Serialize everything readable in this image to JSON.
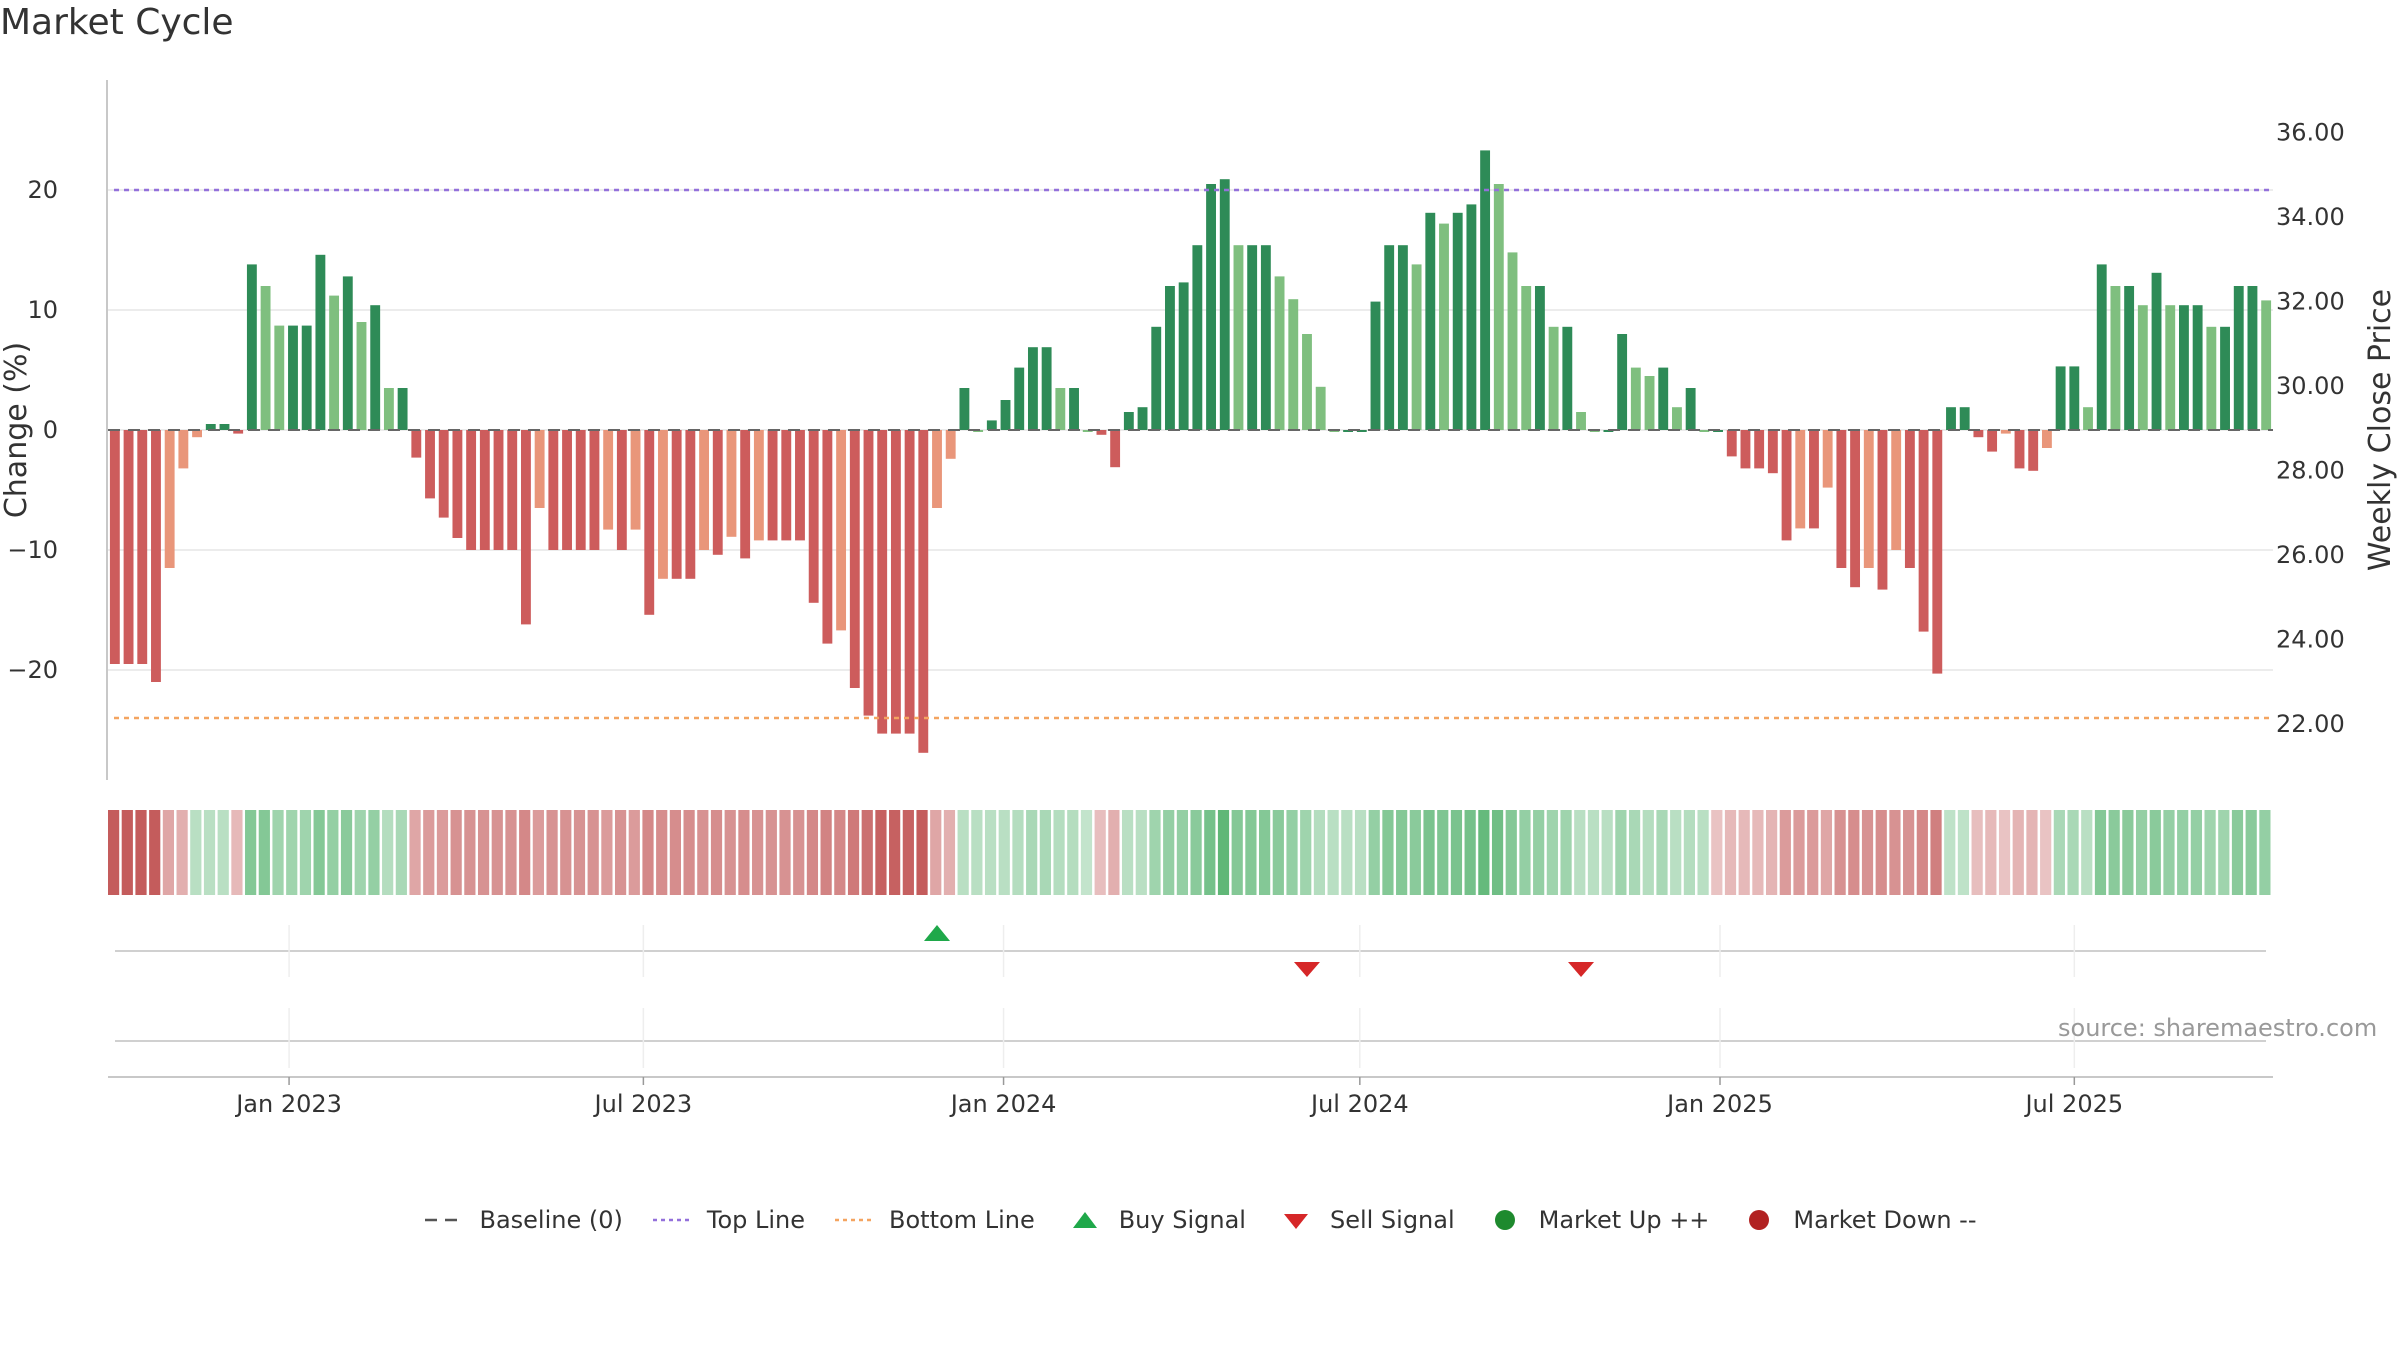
{
  "title": "Market Cycle",
  "source": "source: sharemaestro.com",
  "chart_data": {
    "type": "bar",
    "title": "Market Cycle",
    "ylabel": "Change (%)",
    "y2label": "Weekly Close Price",
    "ylim": [
      -29,
      29
    ],
    "y2lim": [
      20.7,
      37.35
    ],
    "yticks": [
      -20,
      -10,
      0,
      10,
      20
    ],
    "y2ticks": [
      "22.00",
      "24.00",
      "26.00",
      "28.00",
      "30.00",
      "32.00",
      "34.00",
      "36.00"
    ],
    "xticks": [
      "Jan 2023",
      "Jul 2023",
      "Jan 2024",
      "Jul 2024",
      "Jan 2025",
      "Jul 2025"
    ],
    "top_line": 20,
    "bottom_line": -24,
    "baseline": 0,
    "grid": true,
    "legend_position": "bottom",
    "weeks_start": "2022-10-04",
    "values": [
      -19.5,
      -19.5,
      -19.5,
      -21,
      -11.5,
      -3.2,
      -0.6,
      0.5,
      0.5,
      -0.3,
      13.8,
      12,
      8.7,
      8.7,
      8.7,
      14.6,
      11.2,
      12.8,
      9,
      10.4,
      3.5,
      3.5,
      -2.3,
      -5.7,
      -7.3,
      -9,
      -10,
      -10,
      -10,
      -10,
      -16.2,
      -6.5,
      -10,
      -10,
      -10,
      -10,
      -8.3,
      -10,
      -8.3,
      -15.4,
      -12.4,
      -12.4,
      -12.4,
      -10,
      -10.4,
      -8.9,
      -10.7,
      -9.2,
      -9.2,
      -9.2,
      -9.2,
      -14.4,
      -17.8,
      -16.7,
      -21.5,
      -23.8,
      -25.3,
      -25.3,
      -25.3,
      -26.9,
      -6.5,
      -2.4,
      3.5,
      0,
      0.8,
      2.5,
      5.2,
      6.9,
      6.9,
      3.5,
      3.5,
      0,
      -0.4,
      -3.1,
      1.5,
      1.9,
      8.6,
      12,
      12.3,
      15.4,
      20.5,
      20.9,
      15.4,
      15.4,
      15.4,
      12.8,
      10.9,
      8,
      3.6,
      0,
      0,
      0,
      10.7,
      15.4,
      15.4,
      13.8,
      18.1,
      17.2,
      18.1,
      18.8,
      23.3,
      20.5,
      14.8,
      12,
      12,
      8.6,
      8.6,
      1.5,
      0,
      0,
      8,
      5.2,
      4.5,
      5.2,
      1.9,
      3.5,
      0,
      0,
      -2.2,
      -3.2,
      -3.2,
      -3.6,
      -9.2,
      -8.2,
      -8.2,
      -4.8,
      -11.5,
      -13.1,
      -11.5,
      -13.3,
      -10,
      -11.5,
      -16.8,
      -20.3,
      1.9,
      1.9,
      -0.6,
      -1.8,
      -0.3,
      -3.2,
      -3.4,
      -1.5,
      5.3,
      5.3,
      1.9,
      13.8,
      12,
      12,
      10.4,
      13.1,
      10.4,
      10.4,
      10.4,
      8.6,
      8.6,
      12,
      12,
      10.8
    ],
    "heatmap_values": [
      -25,
      -25,
      -25,
      -25,
      -10,
      -8,
      5,
      5,
      5,
      -6,
      15,
      15,
      10,
      10,
      10,
      15,
      12,
      14,
      10,
      12,
      6,
      8,
      -10,
      -12,
      -12,
      -14,
      -14,
      -14,
      -14,
      -14,
      -16,
      -12,
      -14,
      -14,
      -14,
      -14,
      -12,
      -14,
      -12,
      -16,
      -15,
      -15,
      -15,
      -14,
      -15,
      -14,
      -15,
      -14,
      -14,
      -14,
      -14,
      -16,
      -17,
      -16,
      -19,
      -21,
      -24,
      -24,
      -24,
      -25,
      -10,
      -8,
      5,
      5,
      5,
      5,
      6,
      8,
      8,
      6,
      6,
      3,
      -5,
      -8,
      5,
      5,
      10,
      12,
      12,
      14,
      18,
      22,
      15,
      15,
      15,
      14,
      12,
      10,
      6,
      5,
      5,
      5,
      12,
      15,
      15,
      14,
      17,
      16,
      17,
      18,
      21,
      19,
      15,
      12,
      12,
      10,
      10,
      5,
      5,
      5,
      10,
      8,
      6,
      8,
      5,
      6,
      5,
      -4,
      -6,
      -6,
      -6,
      -7,
      -12,
      -12,
      -12,
      -10,
      -14,
      -15,
      -14,
      -15,
      -14,
      -14,
      -16,
      -18,
      4,
      4,
      -5,
      -6,
      -4,
      -7,
      -7,
      -4,
      8,
      8,
      5,
      15,
      14,
      14,
      12,
      14,
      12,
      12,
      12,
      10,
      10,
      14,
      14,
      12
    ],
    "signals": [
      {
        "type": "buy",
        "week": 60
      },
      {
        "type": "sell",
        "week": 87
      },
      {
        "type": "sell",
        "week": 107
      }
    ]
  },
  "colors": {
    "up_strong": "#2e8b57",
    "up_light": "#7fbf7f",
    "down_strong": "#cd5c5c",
    "down_light": "#e9967a",
    "top_line": "#9370db",
    "bottom_line": "#f4a460",
    "buy": "#1fa84a",
    "sell": "#d62728",
    "market_up": "#1e8a2e",
    "market_down": "#b22222"
  },
  "legend": {
    "baseline": "Baseline (0)",
    "top": "Top Line",
    "bottom": "Bottom Line",
    "buy": "Buy Signal",
    "sell": "Sell Signal",
    "market_up": "Market Up ++",
    "market_down": "Market Down --"
  },
  "icons": {
    "baseline": "dash-line-icon",
    "top": "dotted-line-icon",
    "bottom": "dotted-line-icon",
    "buy": "triangle-up-icon",
    "sell": "triangle-down-icon",
    "market_up": "circle-icon",
    "market_down": "circle-icon"
  }
}
